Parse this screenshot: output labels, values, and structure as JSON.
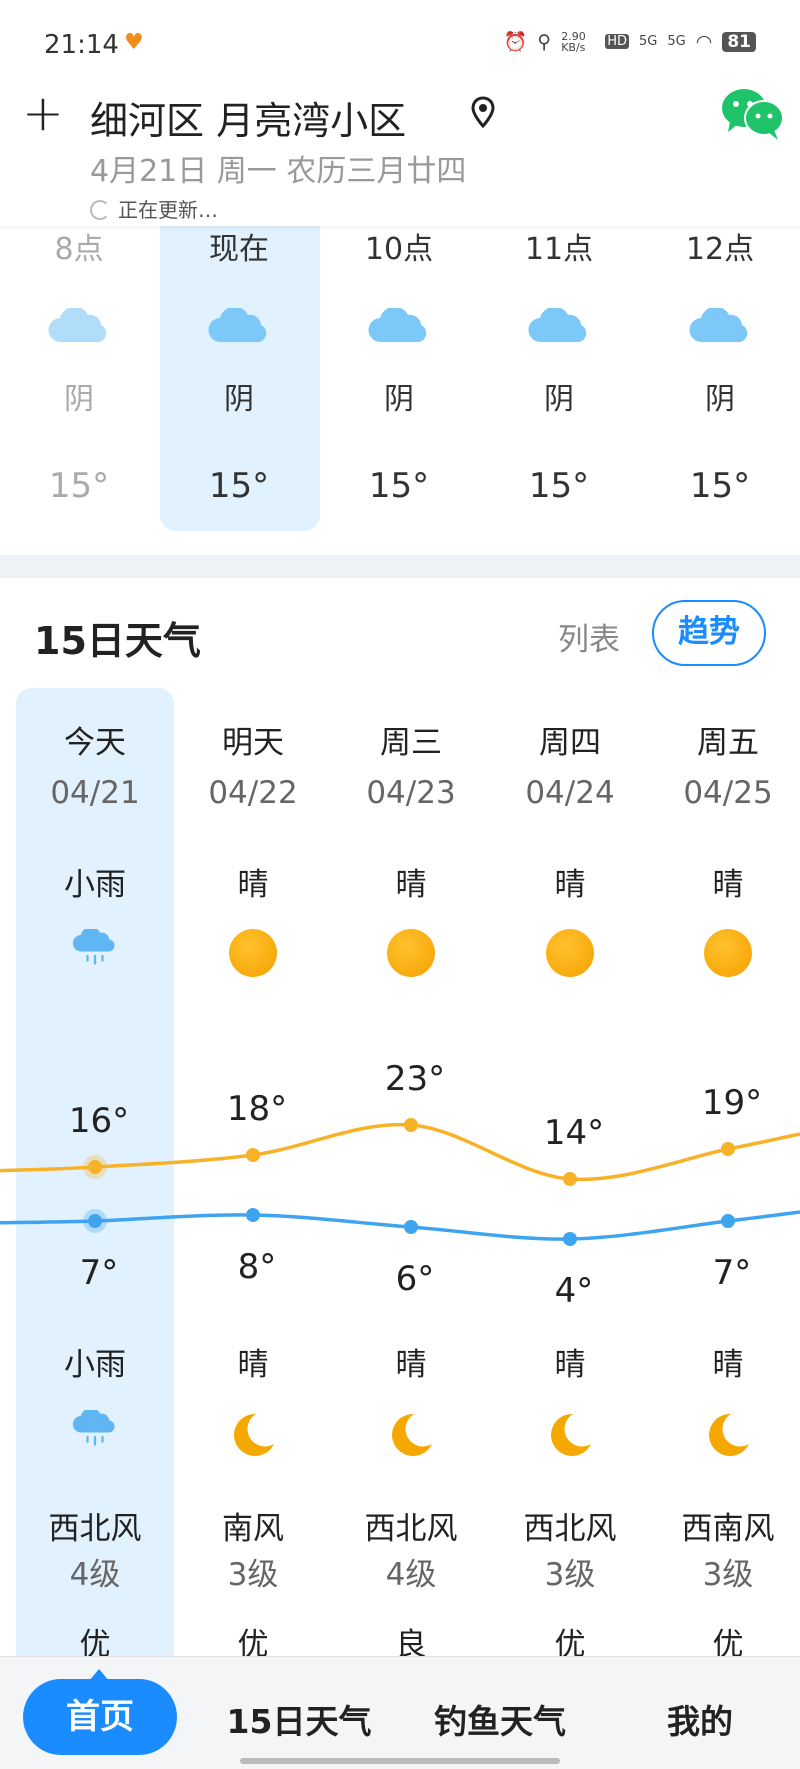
{
  "status": {
    "time": "21:14",
    "speed": "2.90 KB/s",
    "net1": "5G",
    "net2": "5G",
    "battery": "81"
  },
  "header": {
    "location": "细河区 月亮湾小区",
    "date": "4月21日 周一 农历三月廿四",
    "updating": "正在更新…"
  },
  "hourly": [
    {
      "time": "8点",
      "weather": "阴",
      "temp": "15°",
      "icon": "cloud-icon"
    },
    {
      "time": "现在",
      "weather": "阴",
      "temp": "15°",
      "icon": "cloud-icon"
    },
    {
      "time": "10点",
      "weather": "阴",
      "temp": "15°",
      "icon": "cloud-icon"
    },
    {
      "time": "11点",
      "weather": "阴",
      "temp": "15°",
      "icon": "cloud-icon"
    },
    {
      "time": "12点",
      "weather": "阴",
      "temp": "15°",
      "icon": "cloud-icon"
    }
  ],
  "daily_section": {
    "title": "15日天气",
    "list_label": "列表",
    "trend_label": "趋势"
  },
  "daily": [
    {
      "day": "今天",
      "date": "04/21",
      "day_weather": "小雨",
      "high": 16,
      "low": 7,
      "high_label": "16°",
      "low_label": "7°",
      "night_weather": "小雨",
      "wind": "西北风",
      "wind_level": "4级",
      "aqi": "优"
    },
    {
      "day": "明天",
      "date": "04/22",
      "day_weather": "晴",
      "high": 18,
      "low": 8,
      "high_label": "18°",
      "low_label": "8°",
      "night_weather": "晴",
      "wind": "南风",
      "wind_level": "3级",
      "aqi": "优"
    },
    {
      "day": "周三",
      "date": "04/23",
      "day_weather": "晴",
      "high": 23,
      "low": 6,
      "high_label": "23°",
      "low_label": "6°",
      "night_weather": "晴",
      "wind": "西北风",
      "wind_level": "4级",
      "aqi": "良"
    },
    {
      "day": "周四",
      "date": "04/24",
      "day_weather": "晴",
      "high": 14,
      "low": 4,
      "high_label": "14°",
      "low_label": "4°",
      "night_weather": "晴",
      "wind": "西北风",
      "wind_level": "3级",
      "aqi": "优"
    },
    {
      "day": "周五",
      "date": "04/25",
      "day_weather": "晴",
      "high": 19,
      "low": 7,
      "high_label": "19°",
      "low_label": "7°",
      "night_weather": "晴",
      "wind": "西南风",
      "wind_level": "3级",
      "aqi": "优"
    }
  ],
  "colors": {
    "accent": "#1a8cff",
    "high_line": "#f7b228",
    "low_line": "#3fa4f0",
    "highlight": "#e1f1fe"
  },
  "nav": {
    "home": "首页",
    "fifteen": "15日天气",
    "fishing": "钓鱼天气",
    "me": "我的"
  }
}
